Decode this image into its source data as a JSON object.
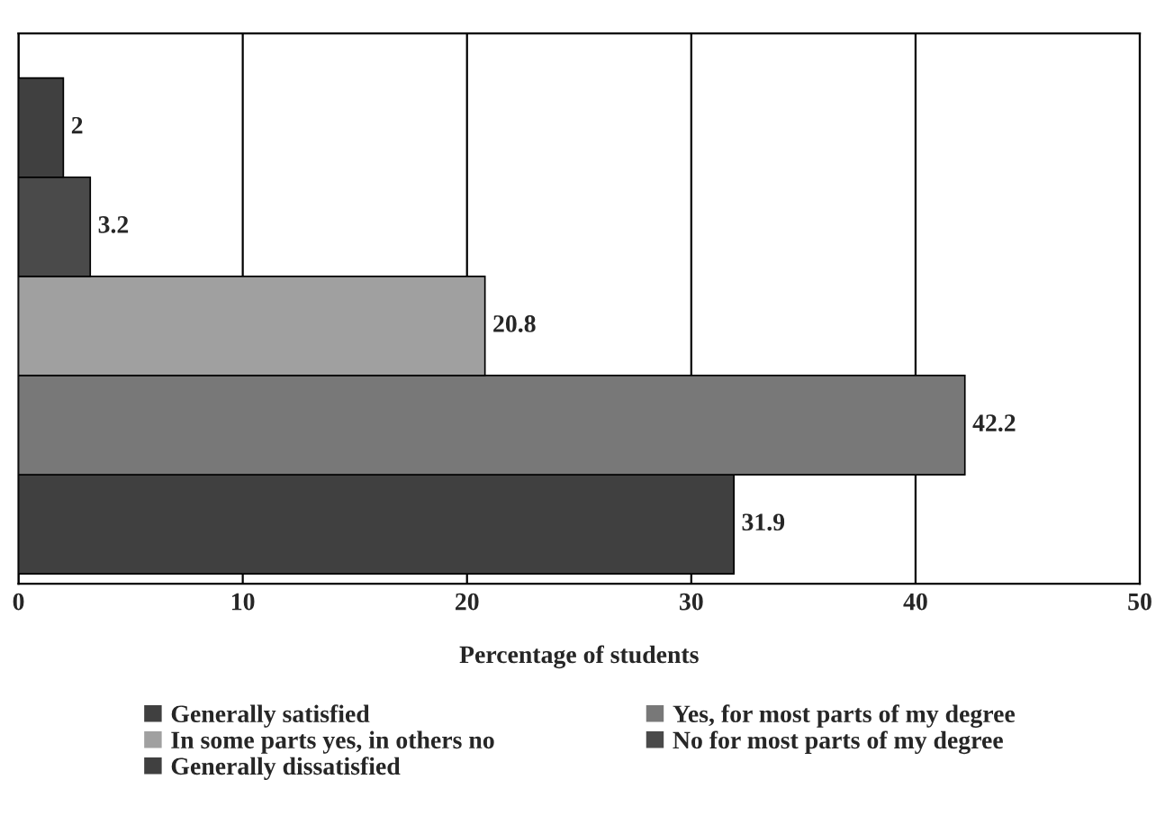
{
  "chart_data": {
    "type": "bar",
    "orientation": "horizontal",
    "xlabel": "Percentage of students",
    "categories": [
      null,
      null,
      null,
      null,
      null
    ],
    "series": [
      {
        "name": "Generally satisfied",
        "color": "#404040",
        "values": [
          null,
          null,
          null,
          null,
          31.9
        ]
      },
      {
        "name": "Yes, for most parts of my degree",
        "color": "#787878",
        "values": [
          null,
          null,
          null,
          42.2,
          null
        ]
      },
      {
        "name": "In some parts yes, in others no",
        "color": "#a0a0a0",
        "values": [
          null,
          null,
          20.8,
          null,
          null
        ]
      },
      {
        "name": "No for most parts of my degree",
        "color": "#4a4a4a",
        "values": [
          null,
          3.2,
          null,
          null,
          null
        ]
      },
      {
        "name": "Generally dissatisfied",
        "color": "#404040",
        "values": [
          2,
          null,
          null,
          null,
          null
        ]
      }
    ],
    "xlim": [
      0,
      50
    ],
    "xticks": [
      0,
      10,
      20,
      30,
      40,
      50
    ],
    "grid": "x",
    "data_labels": true,
    "legend": "bottom",
    "tick_labels": "x"
  }
}
